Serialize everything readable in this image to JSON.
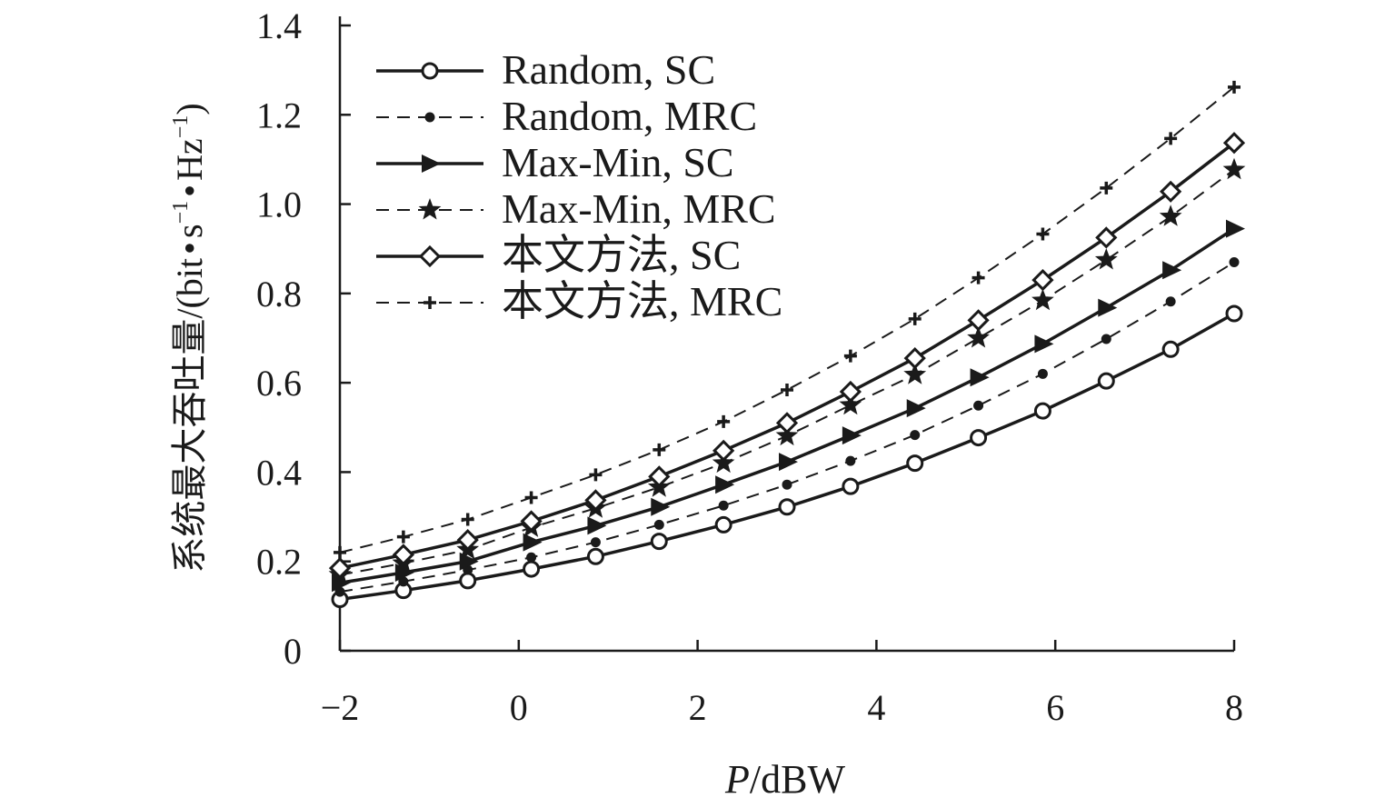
{
  "chart_data": {
    "type": "line",
    "title": "",
    "xlabel_italic": "P",
    "xlabel_unit": "/dBW",
    "ylabel_main": "系统最大吞吐量/(bit",
    "ylabel_s": "s",
    "ylabel_hz": "Hz",
    "ylabel_bullet": "•",
    "ylabel_sup": "−1",
    "ylabel_close": ")",
    "xlim": [
      -2,
      8
    ],
    "ylim": [
      0,
      1.4
    ],
    "xticks": [
      -2,
      0,
      2,
      4,
      6,
      8
    ],
    "xtick_labels": [
      "−2",
      "0",
      "2",
      "4",
      "6",
      "8"
    ],
    "yticks": [
      0,
      0.2,
      0.4,
      0.6,
      0.8,
      1.0,
      1.2,
      1.4
    ],
    "ytick_labels": [
      "0",
      "0.2",
      "0.4",
      "0.6",
      "0.8",
      "1.0",
      "1.2",
      "1.4"
    ],
    "legend_position": "top-left",
    "x": [
      -2,
      -1.29,
      -0.57,
      0.14,
      0.86,
      1.57,
      2.29,
      3,
      3.71,
      4.43,
      5.14,
      5.86,
      6.57,
      7.29,
      8
    ],
    "series": [
      {
        "name": "Random, SC",
        "marker": "circle",
        "dash": "solid",
        "values": [
          0.115,
          0.135,
          0.157,
          0.183,
          0.211,
          0.245,
          0.282,
          0.322,
          0.368,
          0.42,
          0.477,
          0.537,
          0.604,
          0.675,
          0.755
        ]
      },
      {
        "name": "Random, MRC",
        "marker": "dot",
        "dash": "dashed",
        "values": [
          0.132,
          0.155,
          0.181,
          0.209,
          0.243,
          0.282,
          0.325,
          0.372,
          0.425,
          0.483,
          0.549,
          0.62,
          0.698,
          0.782,
          0.87
        ]
      },
      {
        "name": "Max-Min, SC",
        "marker": "triangle-right",
        "dash": "solid",
        "values": [
          0.152,
          0.175,
          0.2,
          0.243,
          0.28,
          0.322,
          0.372,
          0.423,
          0.482,
          0.543,
          0.612,
          0.687,
          0.768,
          0.852,
          0.945
        ]
      },
      {
        "name": "Max-Min, MRC",
        "marker": "star",
        "dash": "dashed",
        "values": [
          0.17,
          0.196,
          0.226,
          0.276,
          0.319,
          0.366,
          0.42,
          0.481,
          0.55,
          0.618,
          0.7,
          0.784,
          0.875,
          0.972,
          1.077
        ]
      },
      {
        "name": "本文方法, SC",
        "marker": "diamond",
        "dash": "solid",
        "values": [
          0.185,
          0.215,
          0.248,
          0.29,
          0.337,
          0.39,
          0.448,
          0.51,
          0.58,
          0.655,
          0.74,
          0.83,
          0.925,
          1.028,
          1.137
        ]
      },
      {
        "name": "本文方法, MRC",
        "marker": "plus",
        "dash": "dashed",
        "values": [
          0.22,
          0.255,
          0.294,
          0.343,
          0.394,
          0.45,
          0.513,
          0.584,
          0.66,
          0.743,
          0.835,
          0.933,
          1.036,
          1.147,
          1.262
        ]
      }
    ]
  }
}
